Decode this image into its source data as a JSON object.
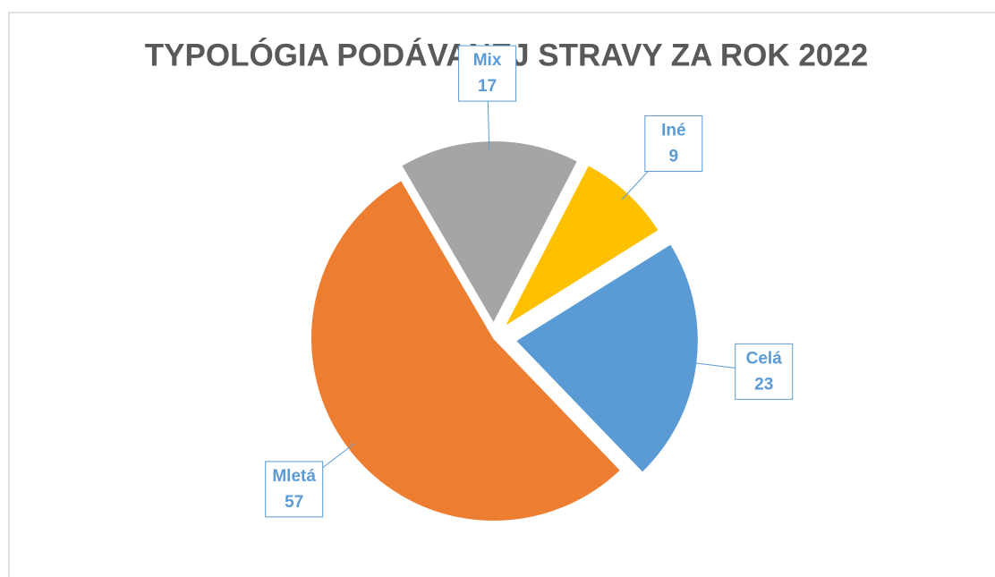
{
  "chart_data": {
    "type": "pie",
    "title": "TYPOLÓGIA PODÁVANEJ STRAVY ZA ROK 2022",
    "categories": [
      "Celá",
      "Mletá",
      "Mix",
      "Iné"
    ],
    "values": [
      23,
      57,
      17,
      9
    ],
    "colors": [
      "#5b9bd5",
      "#ed7d31",
      "#a5a5a5",
      "#ffc000"
    ]
  }
}
